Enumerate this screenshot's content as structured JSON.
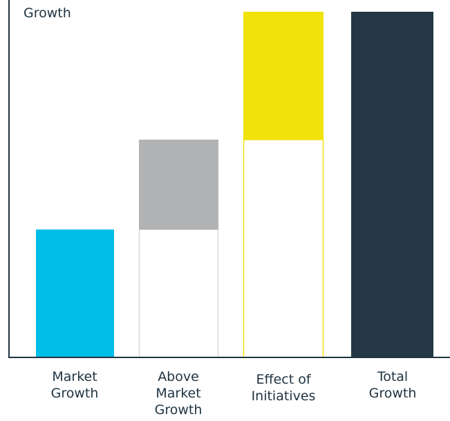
{
  "chart_data": {
    "type": "bar",
    "subtype": "waterfall",
    "ylabel": "Growth",
    "xlabel": "",
    "title": "",
    "y_ticks_shown": false,
    "grid": false,
    "categories": [
      [
        "Market",
        "Growth"
      ],
      [
        "Above",
        "Market",
        "Growth"
      ],
      [
        "Effect of",
        "Initiatives"
      ],
      [
        "Total",
        "Growth"
      ]
    ],
    "bars": [
      {
        "base": 0,
        "value": 37,
        "color": "#00bde8",
        "outline": null
      },
      {
        "base": 37,
        "value": 26,
        "color": "#b1b3b4",
        "outline": "#d9d9d9"
      },
      {
        "base": 63,
        "value": 37,
        "color": "#f1e20c",
        "outline": "#f1e20c"
      },
      {
        "base": 0,
        "value": 100,
        "color": "#233844",
        "outline": null
      }
    ],
    "ylim": [
      0,
      100
    ],
    "colors": {
      "axis": "#1f3340",
      "text": "#1f3340",
      "market": "#00bde8",
      "above_market": "#b1b3b4",
      "initiatives": "#f1e20c",
      "total": "#233844"
    }
  }
}
